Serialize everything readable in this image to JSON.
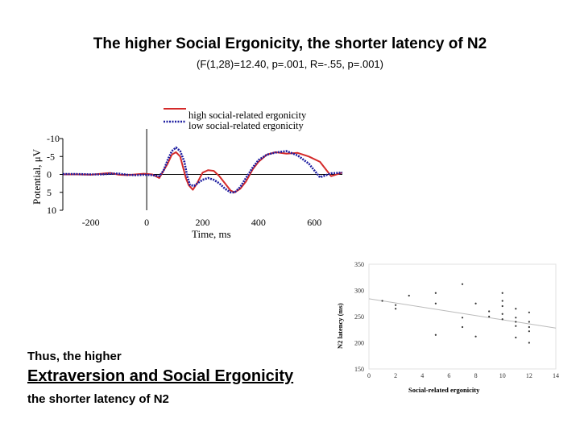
{
  "slide": {
    "title": "The higher Social Ergonicity, the shorter latency of N2",
    "subtitle": "(F(1,28)=12.40, p=.001, R=-.55, p=.001)",
    "bottom_text": {
      "line1": "Thus, the higher",
      "line2": "Extraversion and Social Ergonicity",
      "line3": "the shorter latency of N2"
    }
  },
  "colors": {
    "high": "#d42a2a",
    "low": "#1c1ca0",
    "axis": "#000000",
    "scatter_point": "#333333",
    "regression": "#bbbbbb"
  },
  "chart_data": [
    {
      "type": "line",
      "title": "",
      "xlabel": "Time, ms",
      "ylabel": "Potential, μV",
      "xlim": [
        -300,
        700
      ],
      "ylim": [
        -10,
        10
      ],
      "y_inverted": true,
      "x_ticks": [
        -200,
        0,
        200,
        400,
        600
      ],
      "y_ticks": [
        -10,
        -5,
        0,
        5,
        10
      ],
      "legend": [
        "high social-related ergonicity",
        "low social-related ergonicity"
      ],
      "series": [
        {
          "name": "high social-related ergonicity",
          "style": "solid",
          "x": [
            -300,
            -250,
            -200,
            -160,
            -130,
            -100,
            -70,
            -40,
            -10,
            20,
            45,
            60,
            75,
            90,
            105,
            120,
            130,
            140,
            150,
            165,
            180,
            200,
            220,
            240,
            260,
            280,
            300,
            315,
            335,
            355,
            380,
            400,
            430,
            460,
            500,
            540,
            580,
            620,
            660,
            700
          ],
          "y": [
            0,
            0,
            0.1,
            -0.2,
            -0.4,
            0.1,
            0.2,
            0,
            -0.2,
            0,
            1,
            -1,
            -3,
            -5.5,
            -6.2,
            -5,
            -2,
            1,
            3,
            4.3,
            2.5,
            -0.5,
            -1.2,
            -1,
            0.5,
            2.5,
            4.5,
            5,
            4,
            2,
            -1.5,
            -3.5,
            -5.5,
            -6.2,
            -5.8,
            -6,
            -5,
            -3.5,
            0.5,
            -0.5
          ]
        },
        {
          "name": "low social-related ergonicity",
          "style": "dotted",
          "x": [
            -300,
            -250,
            -200,
            -160,
            -130,
            -100,
            -70,
            -40,
            -10,
            20,
            45,
            60,
            75,
            90,
            105,
            120,
            135,
            145,
            155,
            170,
            185,
            200,
            220,
            240,
            260,
            280,
            300,
            315,
            335,
            355,
            380,
            400,
            430,
            460,
            500,
            540,
            580,
            620,
            660,
            700
          ],
          "y": [
            -0.1,
            -0.1,
            0,
            0,
            -0.2,
            -0.2,
            0.1,
            0.2,
            0.1,
            0.2,
            0.5,
            -1,
            -4,
            -6.5,
            -7.5,
            -6.5,
            -3.5,
            0.5,
            3,
            3.2,
            2.3,
            1.5,
            1,
            1.5,
            2.5,
            4,
            5,
            5,
            3.5,
            1,
            -2,
            -4,
            -5.5,
            -6.1,
            -6.5,
            -5.3,
            -3,
            0.8,
            -0.3,
            -0.5
          ]
        }
      ]
    },
    {
      "type": "scatter",
      "title": "",
      "xlabel": "Social-related ergonicity",
      "ylabel": "N2 latency (ms)",
      "xlim": [
        0,
        14
      ],
      "ylim": [
        150,
        350
      ],
      "x_ticks": [
        0,
        2,
        4,
        6,
        8,
        10,
        12,
        14
      ],
      "y_ticks": [
        150,
        200,
        250,
        300,
        350
      ],
      "points": [
        [
          1,
          280
        ],
        [
          2,
          272
        ],
        [
          2,
          265
        ],
        [
          3,
          290
        ],
        [
          5,
          295
        ],
        [
          5,
          275
        ],
        [
          5,
          215
        ],
        [
          7,
          312
        ],
        [
          7,
          248
        ],
        [
          7,
          230
        ],
        [
          8,
          275
        ],
        [
          8,
          212
        ],
        [
          9,
          260
        ],
        [
          9,
          250
        ],
        [
          10,
          295
        ],
        [
          10,
          280
        ],
        [
          10,
          270
        ],
        [
          10,
          255
        ],
        [
          10,
          245
        ],
        [
          11,
          265
        ],
        [
          11,
          248
        ],
        [
          11,
          240
        ],
        [
          11,
          232
        ],
        [
          11,
          210
        ],
        [
          12,
          258
        ],
        [
          12,
          240
        ],
        [
          12,
          230
        ],
        [
          12,
          222
        ],
        [
          12,
          200
        ]
      ],
      "regression": [
        [
          0,
          284
        ],
        [
          14,
          228
        ]
      ]
    }
  ]
}
